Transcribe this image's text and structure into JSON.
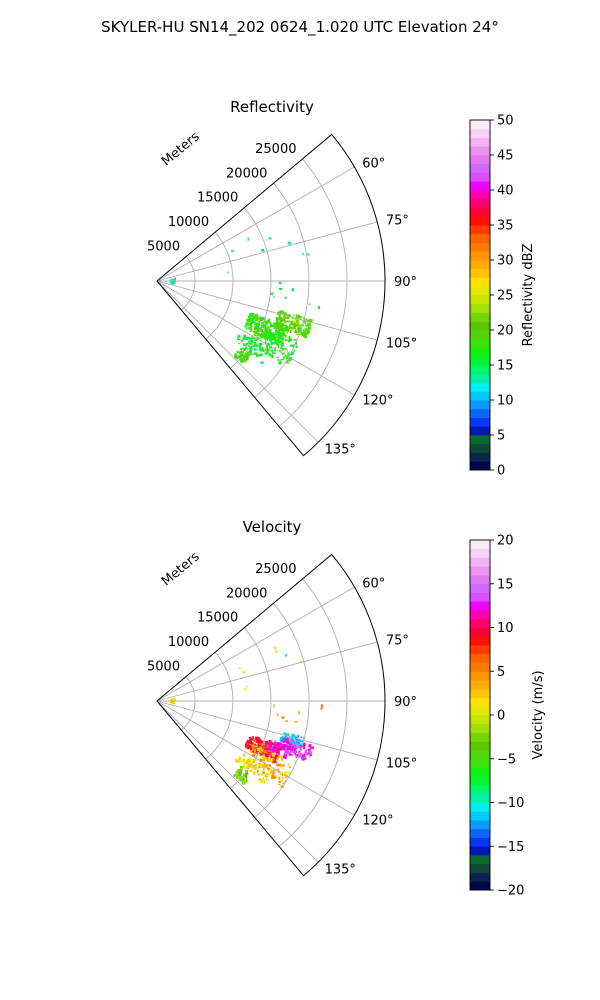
{
  "figure": {
    "suptitle": "SKYLER-HU  SN14_202  0624_1.020 UTC Elevation 24°"
  },
  "chart_data": [
    {
      "type": "polar-ppi",
      "title": "Reflectivity",
      "range_label": "Meters",
      "range_ticks": [
        5000,
        10000,
        15000,
        20000,
        25000
      ],
      "range_max": 30000,
      "azimuth_range_deg": [
        50,
        140
      ],
      "azimuth_ticks": [
        "60°",
        "75°",
        "90°",
        "105°",
        "120°",
        "135°"
      ],
      "colorbar": {
        "label": "Reflectivity dBZ",
        "ticks": [
          "0",
          "5",
          "10",
          "15",
          "20",
          "25",
          "30",
          "35",
          "40",
          "45",
          "50"
        ],
        "vmin": 0,
        "vmax": 50,
        "colors": [
          "#00064a",
          "#0b2553",
          "#0e4a37",
          "#0a6a2e",
          "#0418b5",
          "#0736f6",
          "#0a66ff",
          "#0b9bff",
          "#00c9ff",
          "#00eeee",
          "#00f2a8",
          "#00f56c",
          "#00f631",
          "#14f010",
          "#3be509",
          "#52d407",
          "#5cc700",
          "#74d600",
          "#a2e000",
          "#c3e500",
          "#e2e800",
          "#ffe000",
          "#ffc600",
          "#ffab00",
          "#ff9600",
          "#ff7c00",
          "#ff6200",
          "#ff3a00",
          "#ff1000",
          "#ff003a",
          "#ff006e",
          "#ff00b2",
          "#f000ff",
          "#d94eff",
          "#d06aff",
          "#e07aee",
          "#eb93ef",
          "#f2b3f4",
          "#f7d3f8",
          "#fcecfd"
        ]
      },
      "echo_groups": [
        {
          "az": [
            104,
            111
          ],
          "r": [
            16500,
            21000
          ],
          "density": 150,
          "colors": [
            "#52d407",
            "#5cc700",
            "#74d600",
            "#3be509",
            "#a2e000",
            "#14f010"
          ]
        },
        {
          "az": [
            109,
            118
          ],
          "r": [
            13000,
            18500
          ],
          "density": 220,
          "colors": [
            "#52d407",
            "#5cc700",
            "#74d600",
            "#14f010",
            "#3be509",
            "#00f631"
          ]
        },
        {
          "az": [
            113,
            124
          ],
          "r": [
            14500,
            20500
          ],
          "density": 110,
          "colors": [
            "#00f631",
            "#14f010",
            "#3be509",
            "#52d407"
          ]
        },
        {
          "az": [
            121,
            128
          ],
          "r": [
            13000,
            18000
          ],
          "density": 55,
          "colors": [
            "#00f631",
            "#00f56c",
            "#14f010"
          ]
        },
        {
          "az": [
            128,
            134
          ],
          "r": [
            14000,
            15800
          ],
          "density": 45,
          "colors": [
            "#5cc700",
            "#3be509",
            "#14f010"
          ]
        },
        {
          "az": [
            84,
            98
          ],
          "r": [
            1800,
            2400
          ],
          "density": 18,
          "colors": [
            "#00f56c",
            "#00f2a8",
            "#00eeee"
          ]
        },
        {
          "az": [
            90,
            100
          ],
          "r": [
            15000,
            22000
          ],
          "density": 8,
          "colors": [
            "#00f631",
            "#14f010"
          ]
        },
        {
          "az": [
            62,
            84
          ],
          "r": [
            8000,
            21000
          ],
          "density": 8,
          "colors": [
            "#00c9ff",
            "#00eeee",
            "#00f2a8"
          ]
        }
      ]
    },
    {
      "type": "polar-ppi",
      "title": "Velocity",
      "range_label": "Meters",
      "range_ticks": [
        5000,
        10000,
        15000,
        20000,
        25000
      ],
      "range_max": 30000,
      "azimuth_range_deg": [
        50,
        140
      ],
      "azimuth_ticks": [
        "60°",
        "75°",
        "90°",
        "105°",
        "120°",
        "135°"
      ],
      "colorbar": {
        "label": "Velocity (m/s)",
        "ticks": [
          "−20",
          "−15",
          "−10",
          "−5",
          "0",
          "5",
          "10",
          "15",
          "20"
        ],
        "vmin": -20,
        "vmax": 20,
        "colors": [
          "#00064a",
          "#0b2553",
          "#0e4a37",
          "#0a6a2e",
          "#0418b5",
          "#0736f6",
          "#0a66ff",
          "#0b9bff",
          "#00c9ff",
          "#00eeee",
          "#00f2a8",
          "#00f56c",
          "#00f631",
          "#14f010",
          "#3be509",
          "#52d407",
          "#5cc700",
          "#74d600",
          "#a2e000",
          "#c3e500",
          "#e2e800",
          "#ffe000",
          "#ffc600",
          "#ffab00",
          "#ff9600",
          "#ff7c00",
          "#ff6200",
          "#ff3a00",
          "#ff1000",
          "#ff003a",
          "#ff006e",
          "#ff00b2",
          "#f000ff",
          "#d94eff",
          "#d06aff",
          "#e07aee",
          "#eb93ef",
          "#f2b3f4",
          "#f7d3f8",
          "#fcecfd"
        ]
      },
      "echo_groups": [
        {
          "az": [
            104,
            108
          ],
          "r": [
            17000,
            20000
          ],
          "density": 70,
          "colors": [
            "#00eeee",
            "#00c9ff",
            "#0b9bff"
          ]
        },
        {
          "az": [
            106,
            112
          ],
          "r": [
            17500,
            21500
          ],
          "density": 110,
          "colors": [
            "#f000ff",
            "#d94eff",
            "#ff00b2",
            "#d06aff"
          ]
        },
        {
          "az": [
            110,
            118
          ],
          "r": [
            13000,
            17500
          ],
          "density": 190,
          "colors": [
            "#ff1000",
            "#ff003a",
            "#ff3a00",
            "#ff6200",
            "#ff006e"
          ]
        },
        {
          "az": [
            109,
            114
          ],
          "r": [
            15500,
            18500
          ],
          "density": 60,
          "colors": [
            "#f000ff",
            "#d94eff",
            "#ff00b2"
          ]
        },
        {
          "az": [
            114,
            125
          ],
          "r": [
            14000,
            20000
          ],
          "density": 110,
          "colors": [
            "#ffc600",
            "#ffab00",
            "#ff9600",
            "#ff7c00",
            "#ffe000"
          ]
        },
        {
          "az": [
            121,
            128
          ],
          "r": [
            13000,
            18000
          ],
          "density": 50,
          "colors": [
            "#ffe000",
            "#ffc600",
            "#e2e800"
          ]
        },
        {
          "az": [
            128,
            134
          ],
          "r": [
            14000,
            15800
          ],
          "density": 45,
          "colors": [
            "#74d600",
            "#a2e000",
            "#5cc700"
          ]
        },
        {
          "az": [
            84,
            98
          ],
          "r": [
            1800,
            2400
          ],
          "density": 18,
          "colors": [
            "#ffe000",
            "#e2e800",
            "#ffc600"
          ]
        },
        {
          "az": [
            90,
            100
          ],
          "r": [
            15000,
            22000
          ],
          "density": 8,
          "colors": [
            "#ff7c00",
            "#ffab00"
          ]
        },
        {
          "az": [
            62,
            84
          ],
          "r": [
            8000,
            21000
          ],
          "density": 8,
          "colors": [
            "#ffe000",
            "#e2e800",
            "#00eeee"
          ]
        }
      ]
    }
  ]
}
